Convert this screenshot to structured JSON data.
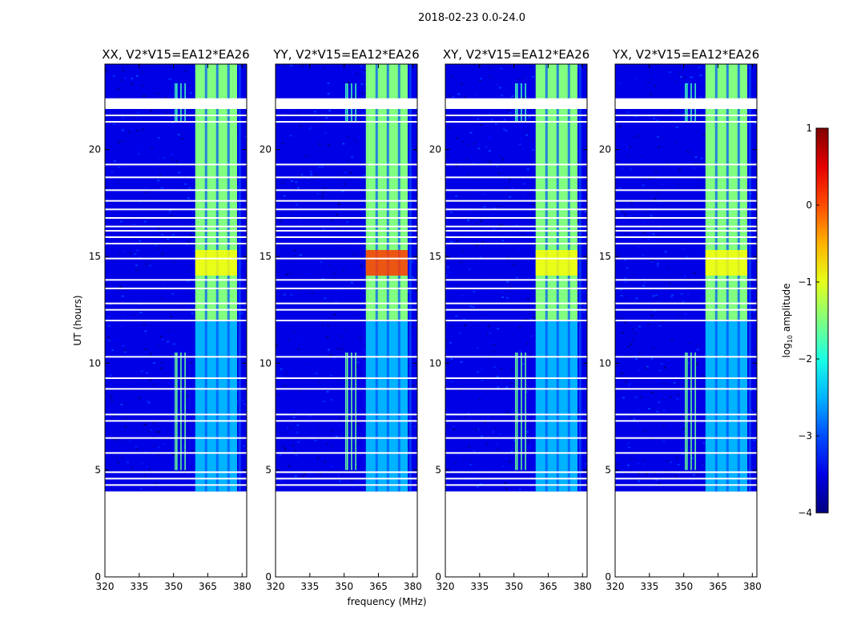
{
  "figure": {
    "suptitle": "2018-02-23 0.0-24.0",
    "xlabel": "frequency (MHz)",
    "ylabel": "UT (hours)",
    "colorbar_label": "log10 amplitude"
  },
  "chart_data": {
    "type": "heatmap",
    "title": "2018-02-23 0.0-24.0",
    "xlabel": "frequency (MHz)",
    "ylabel": "UT (hours)",
    "xlim": [
      320,
      382
    ],
    "ylim": [
      0,
      24
    ],
    "xticks": [
      320,
      335,
      350,
      365,
      380
    ],
    "yticks": [
      0,
      5,
      10,
      15,
      20
    ],
    "data_time_range": [
      4.0,
      24.0
    ],
    "panels": [
      {
        "name": "XX",
        "title": "XX, V2*V15=EA12*EA26"
      },
      {
        "name": "YY",
        "title": "YY, V2*V15=EA12*EA26"
      },
      {
        "name": "XY",
        "title": "XY, V2*V15=EA12*EA26"
      },
      {
        "name": "YX",
        "title": "YX, V2*V15=EA12*EA26"
      }
    ],
    "features": {
      "background_level": -3.5,
      "rfi_band_mhz": [
        359.5,
        383
      ],
      "rfi_band_level_day": -1.5,
      "rfi_band_level_night": -2.5,
      "rfi_peak_ut": [
        14.1,
        15.3
      ],
      "rfi_peak_level_yy": 0.1,
      "narrow_lines_mhz": [
        350.5,
        351.2,
        353.0,
        354.8
      ],
      "flagged_blocks_ut": [
        [
          21.9,
          22.4
        ]
      ],
      "flagged_lines_ut": [
        21.6,
        21.3,
        19.3,
        18.7,
        18.1,
        17.6,
        17.2,
        16.8,
        16.4,
        16.2,
        15.9,
        15.6,
        14.9,
        13.9,
        13.5,
        12.8,
        12.5,
        12.0,
        10.3,
        9.3,
        8.8,
        7.6,
        7.3,
        6.5,
        5.8,
        4.9,
        4.6,
        4.3
      ]
    },
    "colorbar": {
      "label": "log10 amplitude",
      "range": [
        -4,
        1
      ],
      "ticks": [
        1,
        0,
        -1,
        -2,
        -3,
        -4
      ],
      "tick_labels": [
        "1",
        "0",
        "−1",
        "−2",
        "−3",
        "−4"
      ],
      "colormap": "jet"
    }
  }
}
